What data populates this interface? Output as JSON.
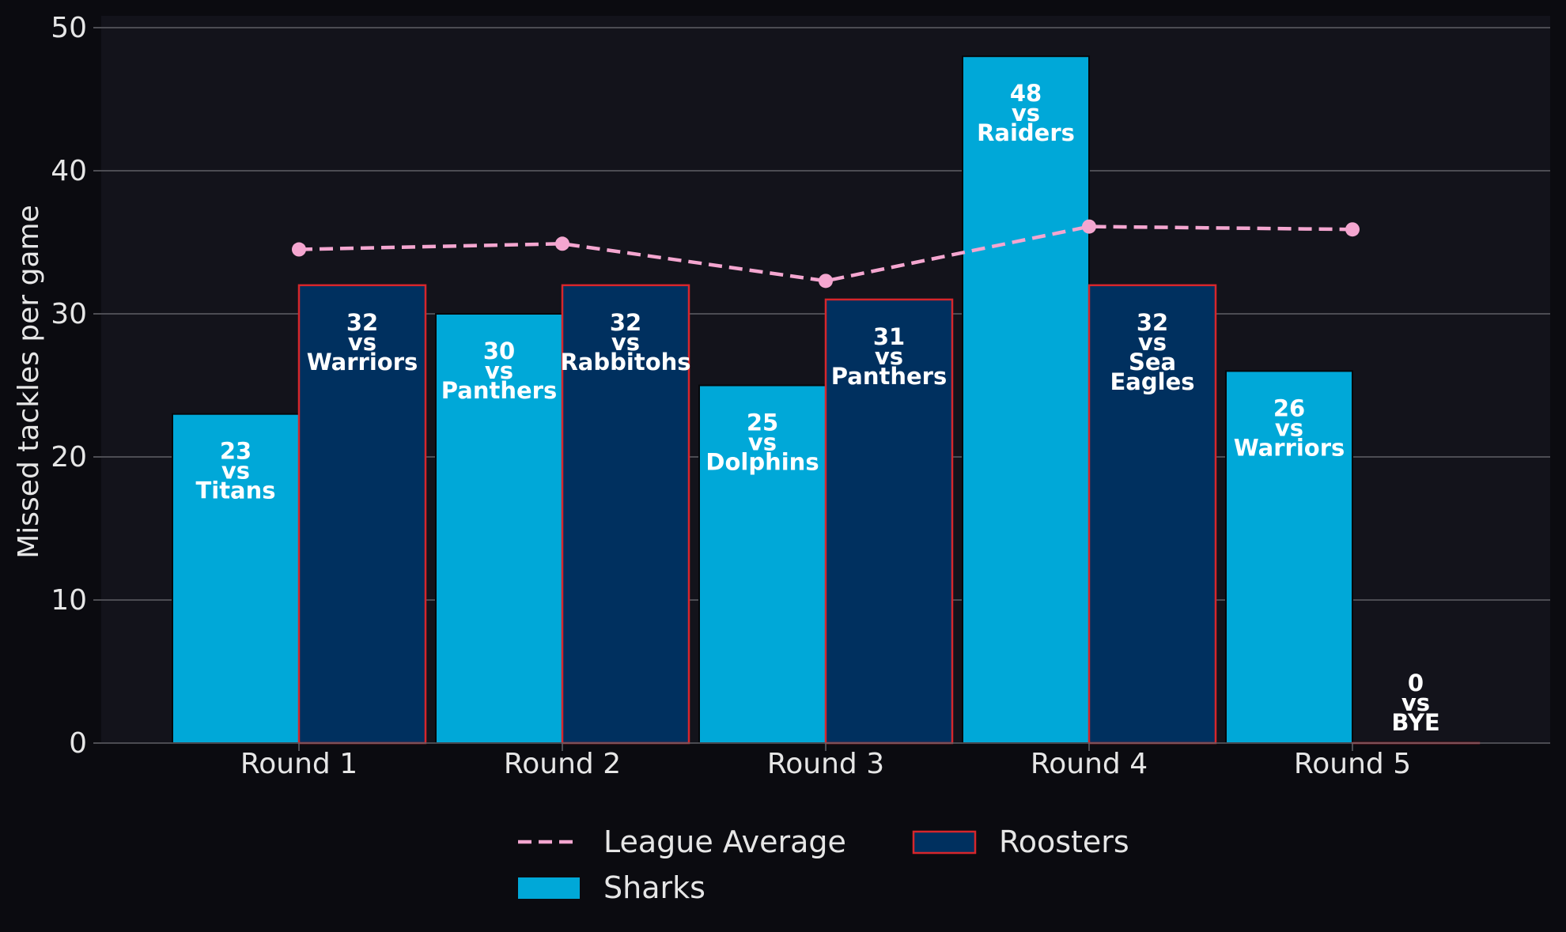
{
  "colors": {
    "page_bg": "#0b0b10",
    "plot_bg": "#13131b",
    "grid": "#5f5f66",
    "text": "#e6e6e6",
    "sharks": "#00a8d8",
    "roosters_fill": "#00305f",
    "roosters_edge": "#d6262c",
    "league_average": "#f4a6d0"
  },
  "chart_data": {
    "type": "bar",
    "ylabel": "Missed tackles per game",
    "xlabel": "",
    "ylim": [
      0,
      50
    ],
    "yticks": [
      "0",
      "10",
      "20",
      "30",
      "40",
      "50"
    ],
    "grid": true,
    "legend_position": "bottom-center",
    "categories": [
      "Round 1",
      "Round 2",
      "Round 3",
      "Round 4",
      "Round 5"
    ],
    "series": [
      {
        "name": "Sharks",
        "kind": "bar",
        "values": [
          23,
          30,
          25,
          48,
          26
        ],
        "labels": [
          [
            "23",
            "vs",
            "Titans"
          ],
          [
            "30",
            "vs",
            "Panthers"
          ],
          [
            "25",
            "vs",
            "Dolphins"
          ],
          [
            "48",
            "vs",
            "Raiders"
          ],
          [
            "26",
            "vs",
            "Warriors"
          ]
        ]
      },
      {
        "name": "Roosters",
        "kind": "bar",
        "values": [
          32,
          32,
          31,
          32,
          0
        ],
        "labels": [
          [
            "32",
            "vs",
            "Warriors"
          ],
          [
            "32",
            "vs",
            "Rabbitohs"
          ],
          [
            "31",
            "vs",
            "Panthers"
          ],
          [
            "32",
            "vs",
            "Sea",
            "Eagles"
          ],
          [
            "0",
            "vs",
            "BYE"
          ]
        ]
      },
      {
        "name": "League Average",
        "kind": "line",
        "style": "dashed",
        "values": [
          34.5,
          34.9,
          32.3,
          36.1,
          35.9
        ]
      }
    ],
    "legend": [
      {
        "series": "League Average",
        "label": "League Average"
      },
      {
        "series": "Roosters",
        "label": "Roosters"
      },
      {
        "series": "Sharks",
        "label": "Sharks"
      }
    ]
  }
}
